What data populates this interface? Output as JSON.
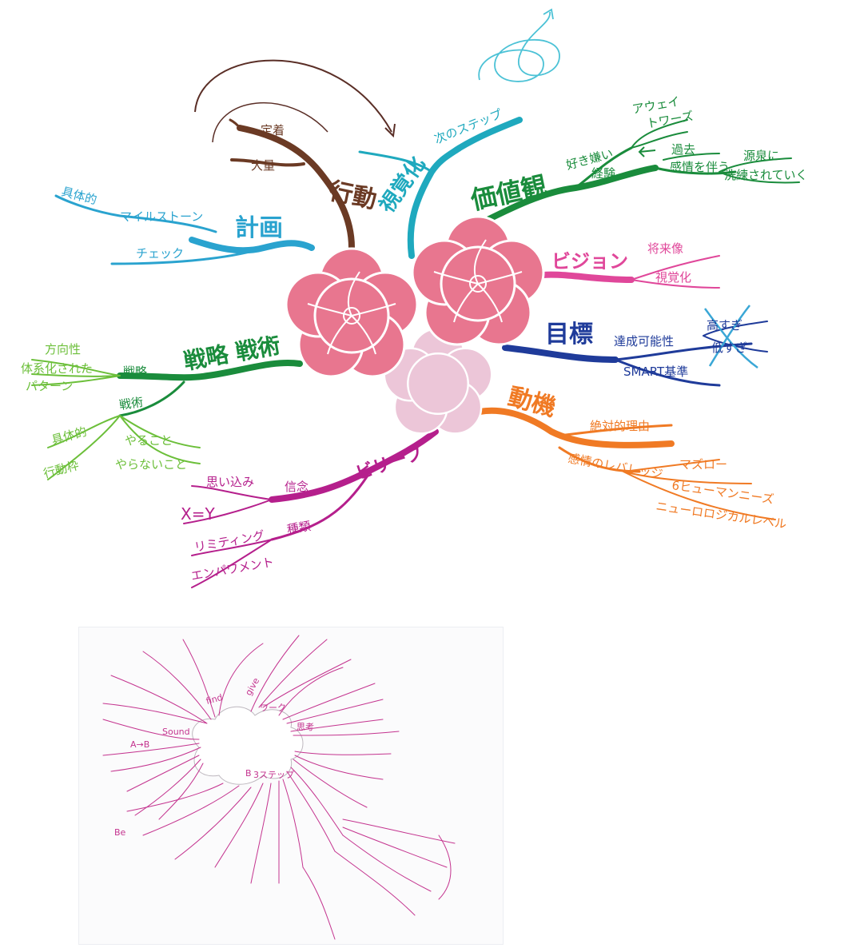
{
  "colors": {
    "brown": "#6b3a24",
    "teal": "#1fa9be",
    "sky": "#2aa3cf",
    "green": "#1a8c3c",
    "lightgreen": "#6cbf3a",
    "pink": "#e0479a",
    "navy": "#1f3b9a",
    "orange": "#f07a24",
    "magenta": "#b51f8c",
    "flower": "#e8768f",
    "flower_light": "#ecc6d8"
  },
  "map1": {
    "branches": {
      "action": {
        "label": "行動",
        "subs": [
          "定着",
          "大量"
        ]
      },
      "visualize": {
        "label": "視覚化",
        "subs": [
          "次のステップ"
        ]
      },
      "values": {
        "label": "価値観",
        "subs": [
          "好き嫌い",
          "経験",
          "アウェイ",
          "トワーズ",
          "過去",
          "感情を伴う",
          "源泉に",
          "洗練されていく"
        ]
      },
      "plan": {
        "label": "計画",
        "subs": [
          "具体的",
          "マイルストーン",
          "チェック"
        ]
      },
      "vision": {
        "label": "ビジョン",
        "subs": [
          "将来像",
          "視覚化"
        ]
      },
      "goal": {
        "label": "目標",
        "subs": [
          "達成可能性",
          "高すぎ",
          "低すぎ",
          "SMART基準"
        ]
      },
      "strategy": {
        "label": "戦略 戦術",
        "subs": [
          "戦略",
          "方向性",
          "体系化された",
          "パターン",
          "戦術",
          "具体的",
          "行動枠",
          "やること",
          "やらないこと"
        ]
      },
      "motive": {
        "label": "動機",
        "subs": [
          "絶対的理由",
          "感情のレバレッジ",
          "マズロー",
          "6ヒューマンニーズ",
          "ニューロロジカルレベル"
        ]
      },
      "belief": {
        "label": "ビリーフ",
        "subs": [
          "信念",
          "思い込み",
          "X=Y",
          "種類",
          "リミティング",
          "エンパワメント"
        ]
      }
    }
  },
  "map2": {
    "labels": {
      "find": "find",
      "give": "give",
      "sound": "Sound",
      "thinking": "思考",
      "be": "Be",
      "b_label": "B",
      "rule3": "3ステップ",
      "aa": "A→B",
      "wa": "ワーク"
    }
  }
}
